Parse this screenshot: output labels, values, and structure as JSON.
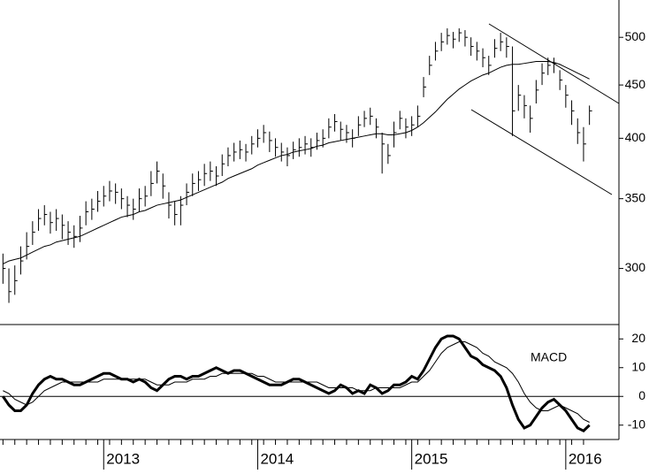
{
  "chart_data": {
    "type": "ohlc",
    "log_scale": true,
    "color": "#000000",
    "ylim": [
      265,
      543
    ],
    "yticks": [
      300,
      350,
      400,
      450,
      500
    ],
    "categories": [
      null,
      null,
      null,
      null,
      null,
      null,
      null,
      null,
      null,
      null,
      null,
      null,
      null,
      null,
      null,
      null,
      null,
      "2013",
      null,
      null,
      null,
      null,
      null,
      null,
      null,
      null,
      null,
      null,
      null,
      null,
      null,
      null,
      null,
      null,
      null,
      null,
      null,
      null,
      null,
      null,
      null,
      null,
      null,
      "2014",
      null,
      null,
      null,
      null,
      null,
      null,
      null,
      null,
      null,
      null,
      null,
      null,
      null,
      null,
      null,
      null,
      null,
      null,
      null,
      null,
      null,
      null,
      null,
      null,
      null,
      "2015",
      null,
      null,
      null,
      null,
      null,
      null,
      null,
      null,
      null,
      null,
      null,
      null,
      null,
      null,
      null,
      null,
      null,
      null,
      null,
      null,
      null,
      null,
      null,
      null,
      null,
      "2016",
      null,
      null,
      null,
      null
    ],
    "high": [
      310,
      300,
      302,
      315,
      325,
      333,
      342,
      345,
      340,
      342,
      338,
      333,
      330,
      337,
      348,
      350,
      356,
      360,
      364,
      362,
      358,
      352,
      350,
      358,
      360,
      372,
      380,
      370,
      355,
      348,
      352,
      362,
      370,
      372,
      378,
      380,
      376,
      386,
      392,
      396,
      398,
      395,
      402,
      408,
      412,
      406,
      400,
      396,
      392,
      397,
      400,
      402,
      400,
      405,
      408,
      418,
      422,
      415,
      412,
      408,
      420,
      425,
      428,
      418,
      405,
      395,
      415,
      425,
      418,
      420,
      430,
      458,
      480,
      495,
      505,
      510,
      506,
      510,
      508,
      500,
      495,
      488,
      480,
      498,
      505,
      500,
      490,
      450,
      440,
      430,
      455,
      472,
      478,
      478,
      465,
      450,
      435,
      418,
      410,
      430
    ],
    "low": [
      290,
      278,
      283,
      296,
      306,
      316,
      326,
      330,
      324,
      326,
      320,
      316,
      314,
      318,
      330,
      334,
      340,
      344,
      348,
      346,
      342,
      336,
      334,
      340,
      344,
      352,
      362,
      350,
      335,
      330,
      330,
      345,
      352,
      356,
      360,
      364,
      360,
      368,
      376,
      380,
      382,
      380,
      386,
      392,
      396,
      388,
      384,
      380,
      376,
      382,
      384,
      386,
      384,
      390,
      392,
      400,
      406,
      398,
      396,
      392,
      402,
      410,
      412,
      400,
      370,
      378,
      392,
      408,
      400,
      402,
      410,
      438,
      460,
      475,
      485,
      492,
      488,
      495,
      490,
      480,
      475,
      468,
      460,
      478,
      485,
      478,
      402,
      425,
      418,
      405,
      432,
      450,
      460,
      462,
      445,
      428,
      412,
      395,
      380,
      412
    ],
    "close": [
      300,
      285,
      292,
      305,
      315,
      325,
      335,
      338,
      332,
      335,
      330,
      325,
      322,
      328,
      340,
      342,
      348,
      352,
      356,
      355,
      350,
      345,
      342,
      350,
      352,
      362,
      372,
      360,
      345,
      338,
      345,
      355,
      362,
      365,
      370,
      372,
      368,
      378,
      385,
      388,
      390,
      388,
      395,
      400,
      405,
      398,
      392,
      388,
      385,
      390,
      392,
      395,
      392,
      398,
      400,
      410,
      415,
      408,
      405,
      400,
      412,
      418,
      420,
      410,
      395,
      385,
      405,
      418,
      410,
      412,
      420,
      448,
      470,
      485,
      495,
      502,
      498,
      505,
      500,
      490,
      485,
      478,
      470,
      488,
      495,
      490,
      425,
      440,
      430,
      418,
      445,
      462,
      470,
      472,
      455,
      440,
      425,
      405,
      395,
      425
    ],
    "moving_average": {
      "color": "#000000",
      "values": [
        303,
        305,
        306,
        307,
        309,
        311,
        313,
        315,
        316,
        318,
        319,
        320,
        321,
        322,
        324,
        326,
        328,
        330,
        332,
        334,
        336,
        337,
        338,
        340,
        341,
        343,
        345,
        346,
        347,
        348,
        349,
        351,
        353,
        355,
        357,
        359,
        361,
        363,
        366,
        368,
        370,
        372,
        374,
        377,
        379,
        381,
        383,
        385,
        386,
        388,
        389,
        390,
        391,
        393,
        394,
        396,
        397,
        398,
        399,
        400,
        401,
        402,
        403,
        404,
        404,
        403,
        403,
        404,
        405,
        407,
        410,
        414,
        419,
        424,
        430,
        436,
        441,
        446,
        450,
        454,
        457,
        460,
        462,
        465,
        468,
        470,
        471,
        471,
        472,
        473,
        474,
        474,
        474,
        473,
        471,
        468,
        465,
        462,
        459,
        456
      ]
    },
    "macd_panel": {
      "type": "line",
      "label": "MACD",
      "ylim": [
        -15,
        25
      ],
      "yticks": [
        20,
        10,
        0,
        -10
      ],
      "zero_line": 0,
      "series": [
        {
          "color": "#000000",
          "line_width": 3,
          "values": [
            0,
            -3,
            -5,
            -5,
            -3,
            1,
            4,
            6,
            7,
            6,
            6,
            5,
            4,
            4,
            5,
            6,
            7,
            8,
            8,
            7,
            6,
            6,
            5,
            6,
            5,
            3,
            2,
            4,
            6,
            7,
            7,
            6,
            7,
            7,
            8,
            9,
            10,
            9,
            8,
            9,
            9,
            8,
            7,
            6,
            5,
            4,
            4,
            4,
            5,
            6,
            6,
            5,
            4,
            3,
            2,
            1,
            2,
            4,
            3,
            1,
            2,
            1,
            4,
            3,
            1,
            2,
            4,
            4,
            5,
            7,
            6,
            9,
            13,
            17,
            20,
            21,
            21,
            20,
            17,
            14,
            13,
            11,
            10,
            9,
            7,
            3,
            -3,
            -8,
            -11,
            -10,
            -7,
            -4,
            -2,
            -1,
            -3,
            -5,
            -8,
            -11,
            -12,
            -10
          ]
        },
        {
          "color": "#000000",
          "line_width": 1,
          "values": [
            2,
            1,
            -1,
            -2,
            -3,
            -2,
            0,
            2,
            3,
            4,
            5,
            5,
            5,
            5,
            5,
            5,
            5,
            6,
            6,
            6,
            6,
            6,
            6,
            6,
            6,
            5,
            4,
            4,
            4,
            5,
            5,
            5,
            6,
            6,
            6,
            7,
            7,
            8,
            8,
            8,
            8,
            8,
            8,
            7,
            7,
            6,
            5,
            5,
            5,
            5,
            5,
            5,
            5,
            5,
            4,
            3,
            3,
            3,
            3,
            3,
            2,
            2,
            2,
            3,
            3,
            3,
            3,
            3,
            4,
            5,
            5,
            7,
            9,
            12,
            15,
            17,
            18,
            19,
            19,
            18,
            17,
            15,
            14,
            12,
            11,
            10,
            8,
            5,
            1,
            -2,
            -4,
            -5,
            -5,
            -4,
            -3,
            -4,
            -5,
            -6,
            -8,
            -9
          ]
        }
      ]
    }
  }
}
